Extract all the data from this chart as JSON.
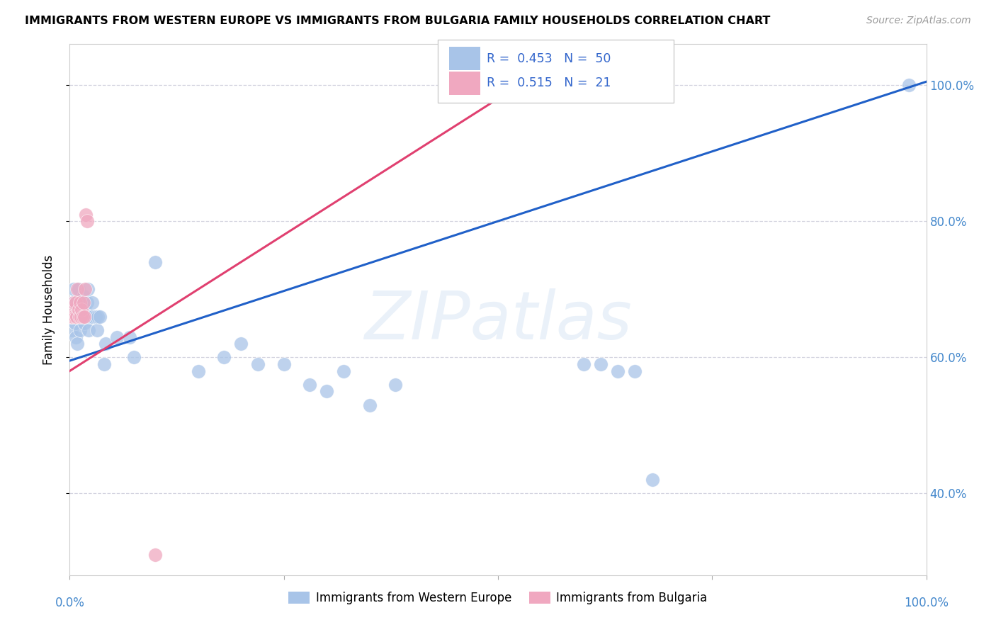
{
  "title": "IMMIGRANTS FROM WESTERN EUROPE VS IMMIGRANTS FROM BULGARIA FAMILY HOUSEHOLDS CORRELATION CHART",
  "source": "Source: ZipAtlas.com",
  "ylabel": "Family Households",
  "legend_blue_label": "Immigrants from Western Europe",
  "legend_pink_label": "Immigrants from Bulgaria",
  "R_blue": 0.453,
  "N_blue": 50,
  "R_pink": 0.515,
  "N_pink": 21,
  "blue_color": "#a8c4e8",
  "pink_color": "#f0a8c0",
  "line_blue": "#2060c8",
  "line_pink": "#e04070",
  "blue_scatter_x": [
    0.002,
    0.003,
    0.004,
    0.005,
    0.006,
    0.007,
    0.008,
    0.009,
    0.01,
    0.011,
    0.012,
    0.013,
    0.015,
    0.016,
    0.017,
    0.018,
    0.019,
    0.02,
    0.021,
    0.022,
    0.023,
    0.025,
    0.026,
    0.027,
    0.03,
    0.032,
    0.033,
    0.035,
    0.04,
    0.042,
    0.055,
    0.07,
    0.075,
    0.1,
    0.15,
    0.18,
    0.2,
    0.22,
    0.25,
    0.28,
    0.3,
    0.32,
    0.35,
    0.38,
    0.6,
    0.62,
    0.64,
    0.66,
    0.68,
    0.98
  ],
  "blue_scatter_y": [
    0.64,
    0.66,
    0.68,
    0.7,
    0.65,
    0.63,
    0.66,
    0.62,
    0.7,
    0.66,
    0.64,
    0.68,
    0.67,
    0.69,
    0.65,
    0.67,
    0.66,
    0.68,
    0.7,
    0.64,
    0.66,
    0.66,
    0.68,
    0.66,
    0.66,
    0.64,
    0.66,
    0.66,
    0.59,
    0.62,
    0.63,
    0.63,
    0.6,
    0.74,
    0.58,
    0.6,
    0.62,
    0.59,
    0.59,
    0.56,
    0.55,
    0.58,
    0.53,
    0.56,
    0.59,
    0.59,
    0.58,
    0.58,
    0.42,
    1.0
  ],
  "pink_scatter_x": [
    0.001,
    0.002,
    0.003,
    0.004,
    0.005,
    0.006,
    0.007,
    0.008,
    0.009,
    0.01,
    0.011,
    0.012,
    0.013,
    0.014,
    0.015,
    0.016,
    0.017,
    0.018,
    0.019,
    0.02,
    0.1
  ],
  "pink_scatter_y": [
    0.66,
    0.66,
    0.67,
    0.66,
    0.68,
    0.66,
    0.68,
    0.66,
    0.7,
    0.67,
    0.66,
    0.68,
    0.66,
    0.67,
    0.66,
    0.68,
    0.66,
    0.7,
    0.81,
    0.8,
    0.31
  ],
  "blue_line_x0": 0.0,
  "blue_line_y0": 0.595,
  "blue_line_x1": 1.0,
  "blue_line_y1": 1.005,
  "pink_line_x0": 0.0,
  "pink_line_y0": 0.58,
  "pink_line_x1": 0.55,
  "pink_line_y1": 1.02,
  "xmin": 0.0,
  "xmax": 1.0,
  "ymin": 0.28,
  "ymax": 1.06,
  "yticks": [
    0.4,
    0.6,
    0.8,
    1.0
  ],
  "ytick_labels": [
    "40.0%",
    "60.0%",
    "80.0%",
    "100.0%"
  ],
  "watermark": "ZIPatlas",
  "background_color": "#ffffff"
}
